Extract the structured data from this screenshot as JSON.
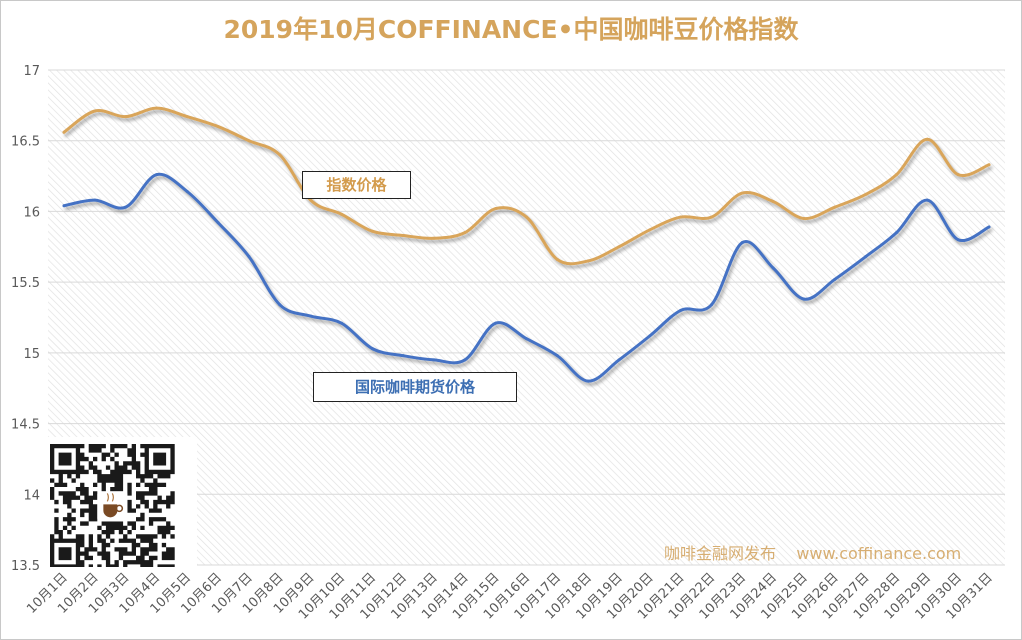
{
  "title": "2019年10月COFFINANCE•中国咖啡豆价格指数",
  "watermark": "咖啡金融网发布    www.coffinance.com",
  "colors": {
    "index": "#d9a55a",
    "futures": "#4472c4",
    "title": "#d5a45c"
  },
  "chart_data": {
    "type": "line",
    "title": "2019年10月COFFINANCE•中国咖啡豆价格指数",
    "xlabel": "",
    "ylabel": "",
    "ylim": [
      13.5,
      17
    ],
    "yticks": [
      "13.5",
      "14",
      "14.5",
      "15",
      "15.5",
      "16",
      "16.5",
      "17"
    ],
    "grid": true,
    "categories": [
      "10月1日",
      "10月2日",
      "10月3日",
      "10月4日",
      "10月5日",
      "10月6日",
      "10月7日",
      "10月8日",
      "10月9日",
      "10月10日",
      "10月11日",
      "10月12日",
      "10月13日",
      "10月14日",
      "10月15日",
      "10月16日",
      "10月17日",
      "10月18日",
      "10月19日",
      "10月20日",
      "10月21日",
      "10月22日",
      "10月23日",
      "10月24日",
      "10月25日",
      "10月26日",
      "10月27日",
      "10月28日",
      "10月29日",
      "10月30日",
      "10月31日"
    ],
    "series": [
      {
        "name": "指数价格",
        "values": [
          16.56,
          16.71,
          16.67,
          16.73,
          16.67,
          16.6,
          16.5,
          16.4,
          16.08,
          15.98,
          15.86,
          15.83,
          15.81,
          15.85,
          16.02,
          15.96,
          15.66,
          15.65,
          15.75,
          15.87,
          15.96,
          15.96,
          16.13,
          16.07,
          15.95,
          16.03,
          16.12,
          16.26,
          16.51,
          16.26,
          16.33
        ]
      },
      {
        "name": "国际咖啡期货价格",
        "values": [
          16.04,
          16.08,
          16.03,
          16.26,
          16.14,
          15.92,
          15.68,
          15.34,
          15.26,
          15.21,
          15.03,
          14.98,
          14.95,
          14.95,
          15.21,
          15.1,
          14.98,
          14.8,
          14.95,
          15.12,
          15.3,
          15.34,
          15.78,
          15.6,
          15.38,
          15.52,
          15.68,
          15.85,
          16.08,
          15.8,
          15.89
        ]
      }
    ]
  }
}
